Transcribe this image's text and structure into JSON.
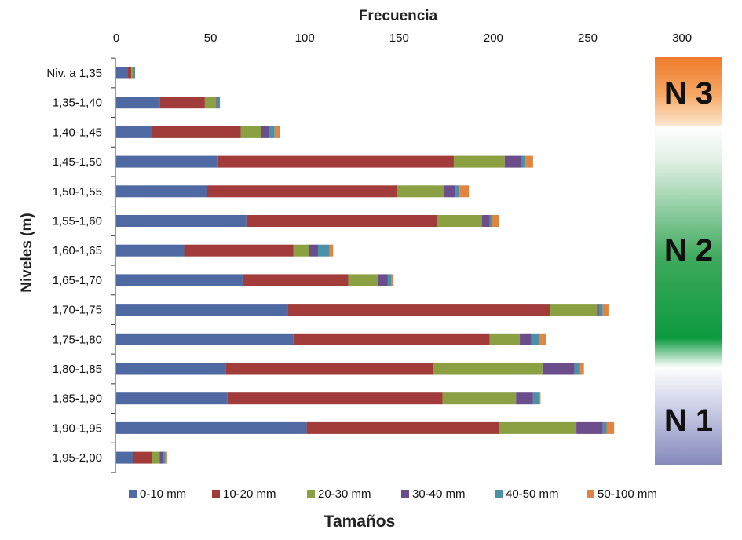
{
  "chart_data": {
    "type": "bar",
    "orientation": "horizontal",
    "stacked": true,
    "title": "",
    "xlabel": "Frecuencia",
    "ylabel": "Niveles (m)",
    "legend_title": "Tamaños",
    "xlim": [
      0,
      300
    ],
    "xticks": [
      0,
      50,
      100,
      150,
      200,
      250,
      300
    ],
    "x_axis_position": "top",
    "legend_position": "bottom",
    "grid": false,
    "categories": [
      "Niv. a 1,35",
      "1,35-1,40",
      "1,40-1,45",
      "1,45-1,50",
      "1,50-1,55",
      "1,55-1,60",
      "1,60-1,65",
      "1,65-1,70",
      "1,70-1,75",
      "1,75-1,80",
      "1,80-1,85",
      "1,85-1,90",
      "1,90-1,95",
      "1,95-2,00"
    ],
    "series": [
      {
        "name": "0-10 mm",
        "color": "#4f6aa3",
        "values": [
          6,
          23,
          19,
          54,
          48,
          69,
          36,
          67,
          91,
          94,
          58,
          59,
          101,
          9
        ]
      },
      {
        "name": "10-20 mm",
        "color": "#a23c3a",
        "values": [
          2,
          24,
          47,
          125,
          101,
          101,
          58,
          56,
          139,
          104,
          110,
          114,
          102,
          10
        ]
      },
      {
        "name": "20-30 mm",
        "color": "#8aa043",
        "values": [
          1,
          6,
          11,
          27,
          25,
          24,
          8,
          16,
          25,
          16,
          58,
          39,
          41,
          4
        ]
      },
      {
        "name": "30-40 mm",
        "color": "#6c4d8b",
        "values": [
          0,
          1,
          4,
          9,
          6,
          4,
          5,
          5,
          1,
          6,
          17,
          9,
          14,
          2
        ]
      },
      {
        "name": "40-50 mm",
        "color": "#4a91a8",
        "values": [
          1,
          1,
          3,
          2,
          2,
          1,
          6,
          2,
          2,
          4,
          3,
          3,
          2,
          1
        ]
      },
      {
        "name": "50-100 mm",
        "color": "#e0843f",
        "values": [
          0,
          0,
          3,
          4,
          5,
          4,
          2,
          1,
          3,
          4,
          2,
          1,
          4,
          1
        ]
      }
    ],
    "zones": [
      {
        "label": "N 3"
      },
      {
        "label": "N 2"
      },
      {
        "label": "N 1"
      }
    ]
  }
}
